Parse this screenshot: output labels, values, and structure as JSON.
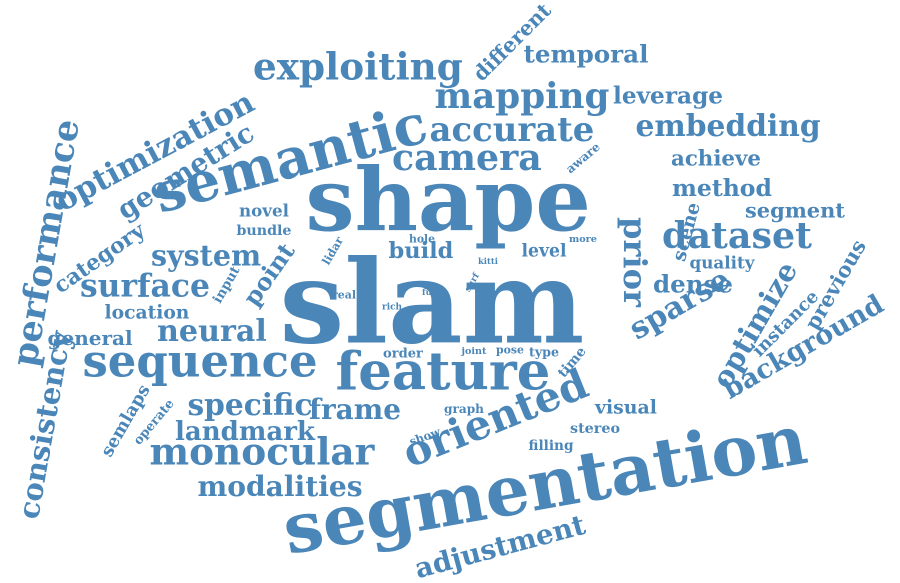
{
  "cloud": {
    "color": "#4a86b8",
    "words": [
      "slam",
      "shape",
      "prior",
      "segmentation",
      "semantic",
      "feature",
      "sequence",
      "oriented",
      "monocular",
      "exploiting",
      "camera",
      "frame",
      "mapping",
      "accurate",
      "embedding",
      "optimization",
      "geometric",
      "point",
      "method",
      "dataset",
      "optimize",
      "background",
      "system",
      "neural",
      "surface",
      "specific",
      "adjustment",
      "modalities",
      "landmark",
      "consistency",
      "performance",
      "temporal",
      "different",
      "leverage",
      "achieve",
      "segment",
      "previous",
      "instance",
      "scene",
      "quality",
      "dense",
      "sparse",
      "visual",
      "build",
      "level",
      "novel",
      "bundle",
      "category",
      "location",
      "general",
      "input",
      "semlaps",
      "operate",
      "stereo",
      "graph",
      "order",
      "filling",
      "show",
      "time",
      "aware",
      "hole",
      "lidar",
      "more",
      "kitti",
      "real",
      "rich",
      "full",
      "surf",
      "joint",
      "pose",
      "type"
    ]
  }
}
